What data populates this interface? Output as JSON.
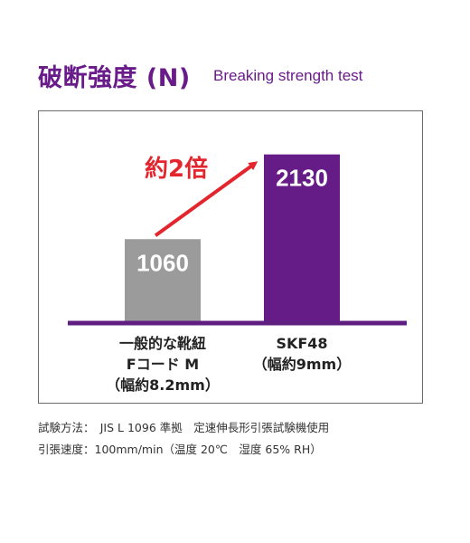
{
  "title": {
    "jp": "破断強度 (N)",
    "en": "Breaking strength test"
  },
  "colors": {
    "accent": "#6a1b8a",
    "bar_gray": "#9b9b9b",
    "bar_purple": "#651c86",
    "baseline": "#5e1f80",
    "arrow": "#e3262e"
  },
  "chart_data": {
    "type": "bar",
    "categories": [
      [
        "一般的な靴紐",
        "Fコード M",
        "（幅約8.2mm）"
      ],
      [
        "SKF48",
        "（幅約9mm）"
      ]
    ],
    "values": [
      1060,
      2130
    ],
    "ylim": [
      0,
      2400
    ],
    "grid": false,
    "annotation": "約2倍"
  },
  "footer": {
    "line1": "試験方法：　JIS L 1096 準拠　定速伸長形引張試験機使用",
    "line2": "引張速度：100mm/min（温度 20℃　湿度 65% RH）"
  }
}
